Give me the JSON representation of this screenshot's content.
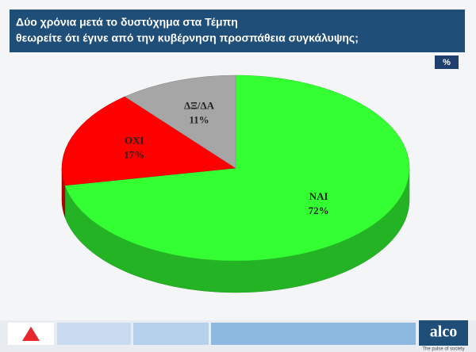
{
  "chart_data": {
    "type": "pie",
    "title": "Δύο χρόνια μετά το δυστύχημα στα Τέμπη",
    "subtitle": "θεωρείτε ότι έγινε  από την κυβέρνηση προσπάθεια συγκάλυψης;",
    "unit_badge": "%",
    "categories": [
      "ΝΑΙ",
      "ΟΧΙ",
      "ΔΞ/ΔΑ"
    ],
    "values": [
      72,
      17,
      11
    ],
    "value_labels": [
      "72%",
      "17%",
      "11%"
    ],
    "colors": [
      "#33ff33",
      "#ff0000",
      "#a6a6a6"
    ],
    "brand": "alco",
    "brand_tagline": "The pulse of society"
  }
}
